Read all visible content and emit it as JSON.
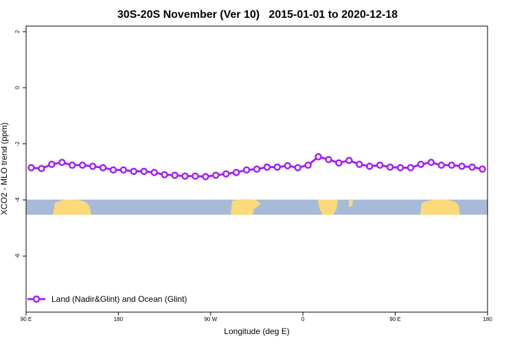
{
  "chart_data": {
    "type": "line",
    "title": "30S-20S November (Ver 10)   2015-01-01 to 2020-12-18",
    "x_label": "Longitude (deg E)",
    "y_label": "XCO2 - MLO trend (ppm)",
    "xlim": [
      90,
      540
    ],
    "xticks": [
      {
        "value": 90,
        "label": "90 E"
      },
      {
        "value": 180,
        "label": "180"
      },
      {
        "value": 270,
        "label": "90 W"
      },
      {
        "value": 360,
        "label": "0"
      },
      {
        "value": 450,
        "label": "90 E"
      },
      {
        "value": 540,
        "label": "180"
      }
    ],
    "ylim": [
      -8,
      2.2
    ],
    "yticks": [
      2,
      0,
      -2,
      -4,
      -6
    ],
    "grid": false,
    "legend": "bottom-left",
    "x": [
      95,
      105,
      115,
      125,
      135,
      145,
      155,
      165,
      175,
      185,
      195,
      205,
      215,
      225,
      235,
      245,
      255,
      265,
      275,
      285,
      295,
      305,
      315,
      325,
      335,
      345,
      355,
      365,
      375,
      385,
      395,
      405,
      415,
      425,
      435,
      445,
      455,
      465,
      475,
      485,
      495,
      505,
      515,
      525,
      535
    ],
    "series": [
      {
        "name": "Land (Nadir&Glint) and Ocean (Glint)",
        "color": "#a020f0",
        "values": [
          -2.85,
          -2.88,
          -2.73,
          -2.66,
          -2.76,
          -2.76,
          -2.8,
          -2.85,
          -2.93,
          -2.93,
          -2.98,
          -2.98,
          -3.02,
          -3.1,
          -3.12,
          -3.15,
          -3.15,
          -3.17,
          -3.12,
          -3.07,
          -3.02,
          -2.93,
          -2.9,
          -2.83,
          -2.83,
          -2.78,
          -2.85,
          -2.76,
          -2.46,
          -2.56,
          -2.68,
          -2.59,
          -2.73,
          -2.8,
          -2.76,
          -2.83,
          -2.85,
          -2.85,
          -2.73,
          -2.66,
          -2.76,
          -2.76,
          -2.8,
          -2.83,
          -2.9
        ]
      }
    ]
  }
}
